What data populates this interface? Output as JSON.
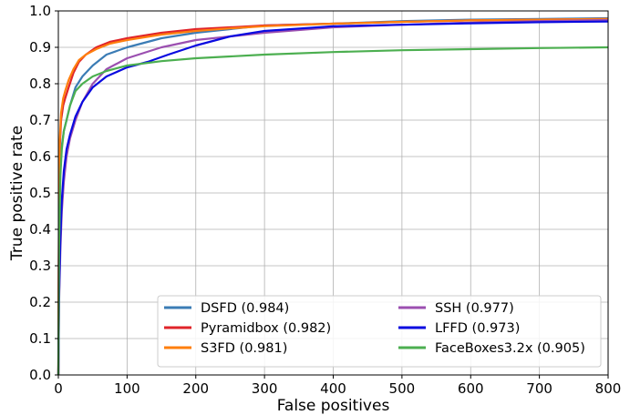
{
  "chart_data": {
    "type": "line",
    "title": "",
    "xlabel": "False positives",
    "ylabel": "True positive rate",
    "xlim": [
      0,
      800
    ],
    "ylim": [
      0.0,
      1.0
    ],
    "xticks": [
      0,
      100,
      200,
      300,
      400,
      500,
      600,
      700,
      800
    ],
    "yticks": [
      0.0,
      0.1,
      0.2,
      0.3,
      0.4,
      0.5,
      0.6,
      0.7,
      0.8,
      0.9,
      1.0
    ],
    "grid": true,
    "legend_position": "lower-right",
    "series": [
      {
        "name": "DSFD (0.984)",
        "color": "#3b7cb5",
        "x": [
          0,
          1,
          3,
          5,
          8,
          12,
          17,
          25,
          35,
          50,
          70,
          100,
          150,
          200,
          250,
          300,
          400,
          500,
          600,
          700,
          800
        ],
        "y": [
          0.0,
          0.45,
          0.58,
          0.63,
          0.67,
          0.7,
          0.74,
          0.79,
          0.82,
          0.85,
          0.88,
          0.9,
          0.925,
          0.94,
          0.95,
          0.96,
          0.965,
          0.972,
          0.976,
          0.978,
          0.98
        ]
      },
      {
        "name": "Pyramidbox (0.982)",
        "color": "#e0242a",
        "x": [
          0,
          1,
          2,
          4,
          7,
          10,
          15,
          22,
          30,
          40,
          55,
          75,
          100,
          150,
          200,
          250,
          300,
          400,
          500,
          600,
          700,
          800
        ],
        "y": [
          0.0,
          0.5,
          0.62,
          0.7,
          0.74,
          0.76,
          0.79,
          0.83,
          0.86,
          0.88,
          0.9,
          0.915,
          0.925,
          0.94,
          0.95,
          0.955,
          0.96,
          0.965,
          0.97,
          0.974,
          0.976,
          0.978
        ]
      },
      {
        "name": "S3FD (0.981)",
        "color": "#ff7f0e",
        "x": [
          0,
          1,
          2,
          4,
          7,
          10,
          15,
          22,
          30,
          40,
          55,
          75,
          100,
          150,
          200,
          250,
          300,
          400,
          500,
          600,
          700,
          800
        ],
        "y": [
          0.0,
          0.52,
          0.64,
          0.72,
          0.76,
          0.78,
          0.81,
          0.84,
          0.865,
          0.88,
          0.895,
          0.91,
          0.92,
          0.935,
          0.945,
          0.952,
          0.958,
          0.965,
          0.97,
          0.974,
          0.976,
          0.978
        ]
      },
      {
        "name": "SSH (0.977)",
        "color": "#9b4fb0",
        "x": [
          0,
          1,
          3,
          5,
          8,
          12,
          17,
          25,
          35,
          50,
          70,
          100,
          150,
          200,
          300,
          400,
          500,
          600,
          700,
          800
        ],
        "y": [
          0.0,
          0.2,
          0.35,
          0.45,
          0.53,
          0.6,
          0.65,
          0.7,
          0.75,
          0.8,
          0.84,
          0.87,
          0.9,
          0.92,
          0.94,
          0.955,
          0.962,
          0.968,
          0.972,
          0.975
        ]
      },
      {
        "name": "LFFD (0.973)",
        "color": "#0a0ae0",
        "x": [
          0,
          1,
          3,
          5,
          8,
          12,
          17,
          25,
          35,
          50,
          70,
          100,
          130,
          160,
          200,
          250,
          300,
          400,
          500,
          600,
          700,
          800
        ],
        "y": [
          0.0,
          0.22,
          0.38,
          0.48,
          0.56,
          0.62,
          0.66,
          0.71,
          0.75,
          0.79,
          0.82,
          0.845,
          0.86,
          0.88,
          0.905,
          0.93,
          0.945,
          0.958,
          0.962,
          0.966,
          0.969,
          0.971
        ]
      },
      {
        "name": "FaceBoxes3.2x (0.905)",
        "color": "#4caf50",
        "x": [
          0,
          1,
          3,
          5,
          8,
          12,
          17,
          25,
          35,
          50,
          70,
          100,
          150,
          200,
          300,
          400,
          500,
          600,
          700,
          800
        ],
        "y": [
          0.0,
          0.35,
          0.55,
          0.62,
          0.67,
          0.7,
          0.74,
          0.78,
          0.8,
          0.82,
          0.835,
          0.85,
          0.862,
          0.87,
          0.88,
          0.887,
          0.892,
          0.895,
          0.898,
          0.9
        ]
      }
    ]
  }
}
